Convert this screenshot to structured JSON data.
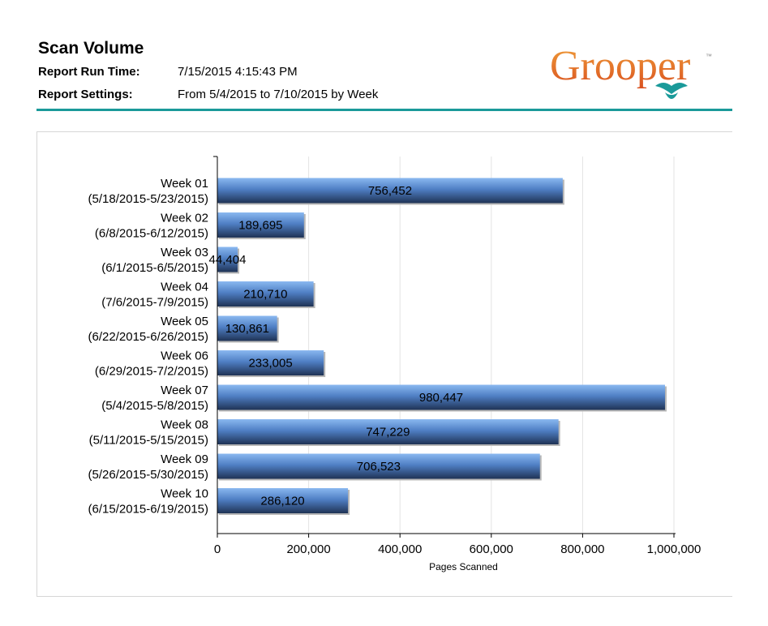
{
  "report": {
    "title": "Scan Volume",
    "run_time_label": "Report Run Time:",
    "run_time_value": "7/15/2015 4:15:43 PM",
    "settings_label": "Report Settings:",
    "settings_value": "From 5/4/2015 to 7/10/2015 by Week"
  },
  "logo": {
    "text": "Grooper",
    "tm": "™",
    "icon": "grooper-logo"
  },
  "colors": {
    "accent_rule": "#1a9a9a",
    "bar_top": "#8ab8f0",
    "bar_mid": "#4f7fc4",
    "bar_bottom": "#1f3355",
    "logo_orange": "#e8762b",
    "logo_teal": "#1a9a9a"
  },
  "chart_data": {
    "type": "bar",
    "orientation": "horizontal",
    "categories": [
      [
        "Week 01",
        "(5/18/2015-5/23/2015)"
      ],
      [
        "Week 02",
        "(6/8/2015-6/12/2015)"
      ],
      [
        "Week 03",
        "(6/1/2015-6/5/2015)"
      ],
      [
        "Week 04",
        "(7/6/2015-7/9/2015)"
      ],
      [
        "Week 05",
        "(6/22/2015-6/26/2015)"
      ],
      [
        "Week 06",
        "(6/29/2015-7/2/2015)"
      ],
      [
        "Week 07",
        "(5/4/2015-5/8/2015)"
      ],
      [
        "Week 08",
        "(5/11/2015-5/15/2015)"
      ],
      [
        "Week 09",
        "(5/26/2015-5/30/2015)"
      ],
      [
        "Week 10",
        "(6/15/2015-6/19/2015)"
      ]
    ],
    "values": [
      756452,
      189695,
      44404,
      210710,
      130861,
      233005,
      980447,
      747229,
      706523,
      286120
    ],
    "value_labels": [
      "756,452",
      "189,695",
      "44,404",
      "210,710",
      "130,861",
      "233,005",
      "980,447",
      "747,229",
      "706,523",
      "286,120"
    ],
    "xlabel": "Pages Scanned",
    "ylabel": "",
    "xlim": [
      0,
      1000000
    ],
    "xticks": [
      0,
      200000,
      400000,
      600000,
      800000,
      1000000
    ],
    "xtick_labels": [
      "0",
      "200,000",
      "400,000",
      "600,000",
      "800,000",
      "1,000,000"
    ],
    "grid": "vertical",
    "legend": "none"
  }
}
